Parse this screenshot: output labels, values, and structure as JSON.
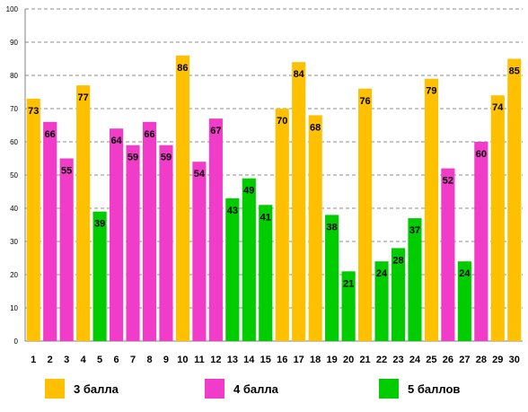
{
  "chart_data": {
    "type": "bar",
    "categories": [
      "1",
      "2",
      "3",
      "4",
      "5",
      "6",
      "7",
      "8",
      "9",
      "10",
      "11",
      "12",
      "13",
      "14",
      "15",
      "16",
      "17",
      "18",
      "19",
      "20",
      "21",
      "22",
      "23",
      "24",
      "25",
      "26",
      "27",
      "28",
      "29",
      "30"
    ],
    "values": [
      73,
      66,
      55,
      77,
      39,
      64,
      59,
      66,
      59,
      86,
      54,
      67,
      43,
      49,
      41,
      70,
      84,
      68,
      38,
      21,
      76,
      24,
      28,
      37,
      79,
      52,
      24,
      60,
      74,
      85
    ],
    "groups": [
      "3",
      "4",
      "4",
      "3",
      "5",
      "4",
      "4",
      "4",
      "4",
      "3",
      "4",
      "4",
      "5",
      "5",
      "5",
      "3",
      "3",
      "3",
      "5",
      "5",
      "3",
      "5",
      "5",
      "5",
      "3",
      "4",
      "5",
      "4",
      "3",
      "3"
    ],
    "ylim": [
      0,
      100
    ],
    "yticks": [
      0,
      10,
      20,
      30,
      40,
      50,
      60,
      70,
      80,
      90,
      100
    ],
    "grid": true,
    "legend": {
      "placement": "bottom",
      "entries": [
        {
          "key": "3",
          "label": "3 балла",
          "color": "#FFC000"
        },
        {
          "key": "4",
          "label": "4 балла",
          "color": "#F03CC8"
        },
        {
          "key": "5",
          "label": "5 баллов",
          "color": "#00CC00"
        }
      ]
    }
  }
}
